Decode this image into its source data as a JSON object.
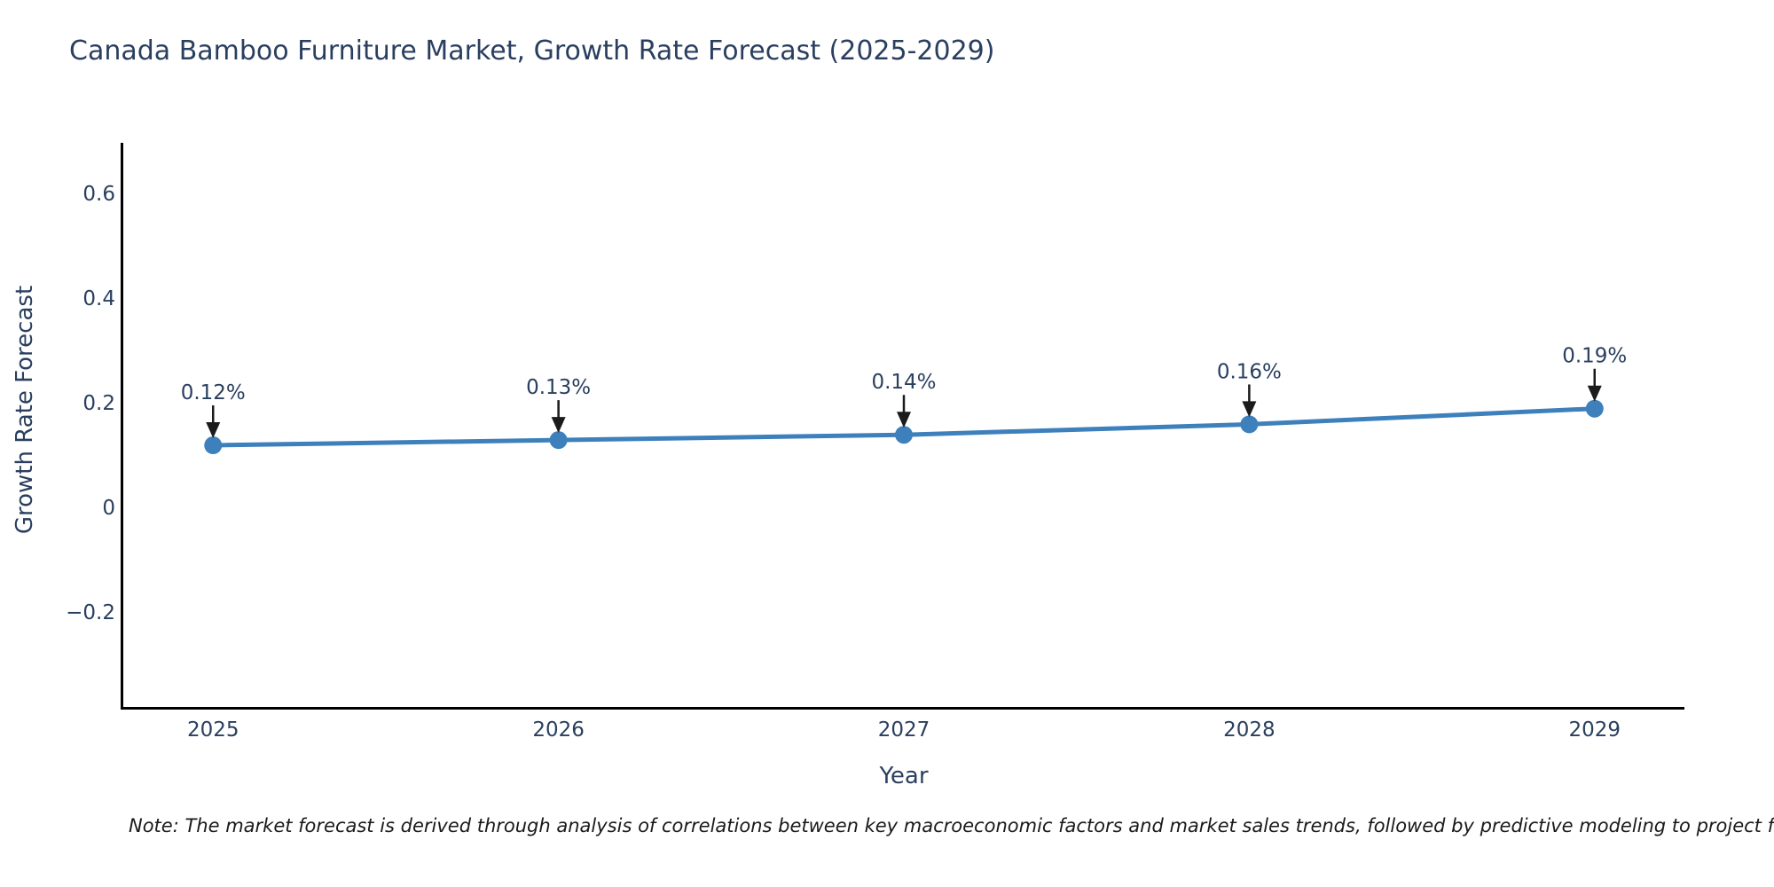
{
  "title": "Canada Bamboo Furniture Market, Growth Rate Forecast (2025-2029)",
  "note": "Note: The market forecast is derived through analysis of correlations between key macroeconomic factors and market sales trends, followed by predictive modeling to project future sales",
  "chart_data": {
    "type": "line",
    "title": "Canada Bamboo Furniture Market, Growth Rate Forecast (2025-2029)",
    "xlabel": "Year",
    "ylabel": "Growth Rate Forecast",
    "x": [
      2025,
      2026,
      2027,
      2028,
      2029
    ],
    "x_tick_labels": [
      "2025",
      "2026",
      "2027",
      "2028",
      "2029"
    ],
    "series": [
      {
        "name": "Growth Rate Forecast",
        "values": [
          0.12,
          0.13,
          0.14,
          0.16,
          0.19
        ]
      }
    ],
    "point_labels": [
      "0.12%",
      "0.13%",
      "0.14%",
      "0.16%",
      "0.19%"
    ],
    "yticks": [
      0.6,
      0.4,
      0.2,
      0,
      -0.2
    ],
    "y_tick_labels": [
      "0.6",
      "0.4",
      "0.2",
      "0",
      "−0.2"
    ],
    "xlim": [
      2024.74,
      2029.26
    ],
    "ylim": [
      -0.385,
      0.698
    ],
    "grid": false,
    "legend": "none",
    "line_color": "#3d80bc",
    "marker_color": "#3d80bc",
    "annotation_arrow_color": "#1b1b1b",
    "text_color": "#2a3f5f"
  }
}
